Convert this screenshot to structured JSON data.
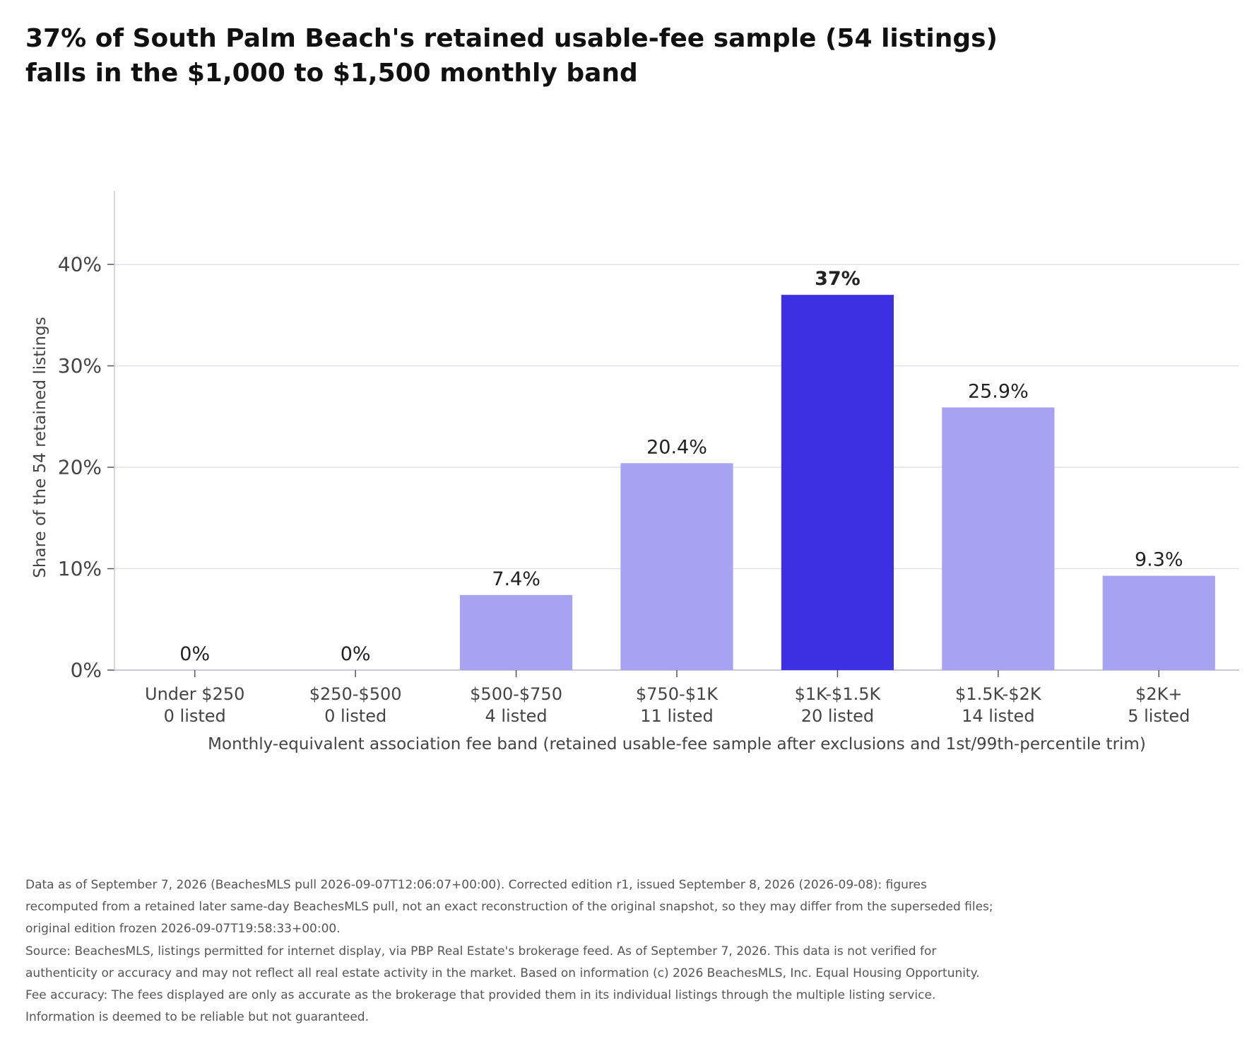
{
  "title_lines": [
    "37% of South Palm Beach's retained usable-fee sample (54 listings)",
    "falls in the $1,000 to $1,500 monthly band"
  ],
  "chart_data": {
    "type": "bar",
    "categories": [
      "Under $250",
      "$250-$500",
      "$500-$750",
      "$750-$1K",
      "$1K-$1.5K",
      "$1.5K-$2K",
      "$2K+"
    ],
    "counts": [
      "0 listed",
      "0 listed",
      "4 listed",
      "11 listed",
      "20 listed",
      "14 listed",
      "5 listed"
    ],
    "values": [
      0,
      0,
      7.4,
      20.4,
      37.0,
      25.9,
      9.3
    ],
    "value_labels": [
      "0%",
      "0%",
      "7.4%",
      "20.4%",
      "37%",
      "25.9%",
      "9.3%"
    ],
    "highlight_index": 4,
    "ylim": [
      0,
      46
    ],
    "yticks": [
      0,
      10,
      20,
      30,
      40
    ],
    "ytick_labels": [
      "0%",
      "10%",
      "20%",
      "30%",
      "40%"
    ],
    "ylabel": "Share of the 54 retained listings",
    "xlabel": "Monthly-equivalent association fee band (retained usable-fee sample after exclusions and 1st/99th-percentile trim)",
    "grid": "horizontal",
    "colors": {
      "bar": "#a7a2f2",
      "highlight": "#3d30e3",
      "grid": "#e1e1ee",
      "axis": "#c8c8d8",
      "text": "#444444",
      "label": "#222222"
    }
  },
  "footnote": [
    "Data as of September 7, 2026 (BeachesMLS pull 2026-09-07T12:06:07+00:00). Corrected edition r1, issued September 8, 2026 (2026-09-08): figures recomputed from a retained later same-day BeachesMLS pull, not an exact reconstruction of the original snapshot, so they may differ from the superseded files; original edition frozen 2026-09-07T19:58:33+00:00.",
    "Source: BeachesMLS, listings permitted for internet display, via PBP Real Estate's brokerage feed. As of September 7, 2026. This data is not verified for authenticity or accuracy and may not reflect all real estate activity in the market. Based on information (c) 2026 BeachesMLS, Inc. Equal Housing Opportunity. Fee accuracy: The fees displayed are only as accurate as the brokerage that provided them in its individual listings through the multiple listing service. Information is deemed to be reliable but not guaranteed."
  ]
}
